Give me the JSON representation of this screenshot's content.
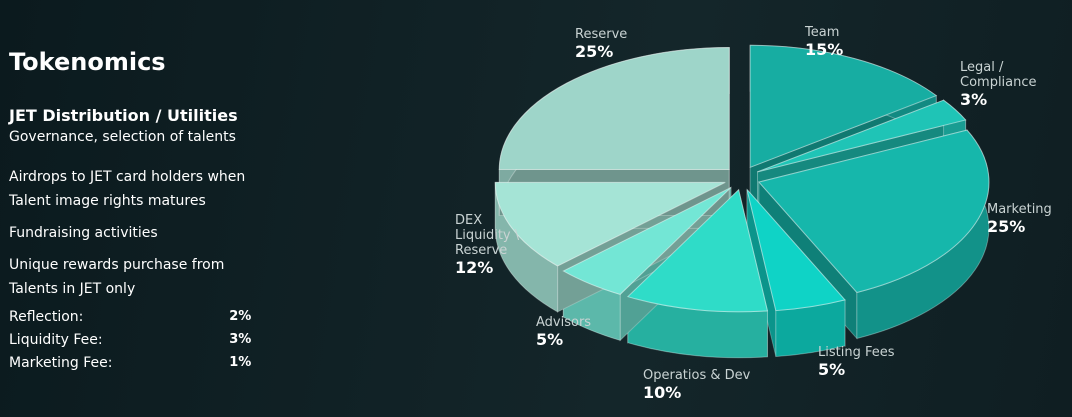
{
  "header": {
    "title": "Tokenomics",
    "subtitle": "JET Distribution / Utilities"
  },
  "utilities": [
    "Governance, selection of talents",
    "Airdrops to JET card holders when Talent image rights matures",
    "Fundraising activities",
    "Unique rewards purchase from Talents in JET only"
  ],
  "fees": [
    [
      "Reflection:",
      "2%"
    ],
    [
      "Liquidity Fee:",
      "3%"
    ],
    [
      "Marketing Fee:",
      "1%"
    ]
  ],
  "chart_data": {
    "type": "pie",
    "categories": [
      "Team",
      "Legal /\nCompliance",
      "Marketing",
      "Listing Fees",
      "Operatios & Dev",
      "Advisors",
      "DEX\nLiquidity \\\nReserve",
      "Reserve"
    ],
    "values": [
      15,
      3,
      25,
      5,
      10,
      5,
      12,
      25
    ],
    "value_labels": [
      "15%",
      "3%",
      "25%",
      "5%",
      "10%",
      "5%",
      "12%",
      "25%"
    ],
    "colors": [
      "#17ada2",
      "#1fc4b6",
      "#16b7ab",
      "#0fd3c6",
      "#2fdcc8",
      "#73e6d5",
      "#a5e4d6",
      "#9ed5c9"
    ]
  }
}
